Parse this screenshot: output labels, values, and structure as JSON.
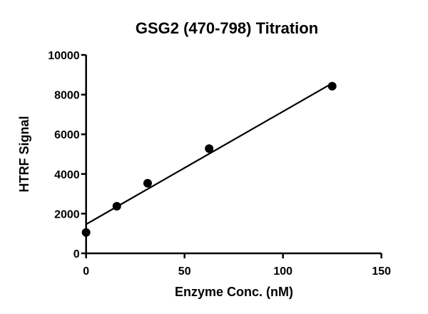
{
  "chart_data": {
    "type": "scatter",
    "title": "GSG2 (470-798) Titration",
    "xlabel": "Enzyme Conc. (nM)",
    "ylabel": "HTRF Signal",
    "xlim": [
      0,
      150
    ],
    "ylim": [
      0,
      10000
    ],
    "xticks": [
      0,
      50,
      100,
      150
    ],
    "yticks": [
      0,
      2000,
      4000,
      6000,
      8000,
      10000
    ],
    "grid": false,
    "points": [
      {
        "x": 0,
        "y": 1054
      },
      {
        "x": 15.6,
        "y": 2374
      },
      {
        "x": 31.25,
        "y": 3536
      },
      {
        "x": 62.5,
        "y": 5277
      },
      {
        "x": 125,
        "y": 8428
      }
    ],
    "fit_line": {
      "x": [
        0,
        125
      ],
      "y": [
        1464,
        8572
      ]
    },
    "color": "#000000"
  }
}
